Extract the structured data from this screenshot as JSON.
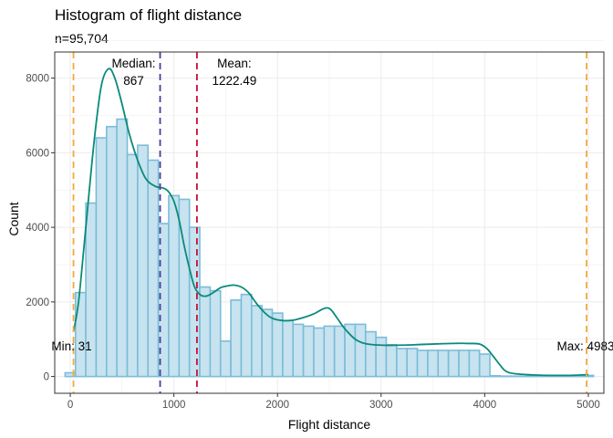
{
  "chart_data": {
    "type": "histogram",
    "title": "Histogram of flight distance",
    "subtitle": "n=95,704",
    "xlabel": "Flight distance",
    "ylabel": "Count",
    "xlim": [
      -150,
      5150
    ],
    "ylim": [
      -450,
      8700
    ],
    "x_ticks": [
      0,
      1000,
      2000,
      3000,
      4000,
      5000
    ],
    "y_ticks": [
      0,
      2000,
      4000,
      6000,
      8000
    ],
    "grid": true,
    "bin_width": 100,
    "bins_x": [
      0,
      100,
      200,
      300,
      400,
      500,
      600,
      700,
      800,
      900,
      1000,
      1100,
      1200,
      1300,
      1400,
      1500,
      1600,
      1700,
      1800,
      1900,
      2000,
      2100,
      2200,
      2300,
      2400,
      2500,
      2600,
      2700,
      2800,
      2900,
      3000,
      3100,
      3200,
      3300,
      3400,
      3500,
      3600,
      3700,
      3800,
      3900,
      4000,
      4100,
      4200,
      4300,
      4400,
      4500,
      4600,
      4700,
      4800,
      4900,
      5000
    ],
    "counts": [
      100,
      2250,
      4650,
      6400,
      6700,
      6900,
      5950,
      6200,
      5800,
      4100,
      4850,
      4750,
      4000,
      2400,
      2300,
      950,
      2050,
      2200,
      1900,
      1800,
      1700,
      1500,
      1400,
      1350,
      1300,
      1350,
      1350,
      1400,
      1400,
      1200,
      1050,
      850,
      750,
      750,
      700,
      700,
      700,
      700,
      700,
      700,
      600,
      20,
      10,
      10,
      10,
      10,
      10,
      10,
      10,
      10,
      30
    ],
    "density": [
      [
        31,
        1200
      ],
      [
        80,
        2000
      ],
      [
        150,
        4000
      ],
      [
        230,
        6300
      ],
      [
        300,
        7800
      ],
      [
        370,
        8250
      ],
      [
        430,
        8000
      ],
      [
        500,
        7300
      ],
      [
        570,
        6500
      ],
      [
        650,
        5800
      ],
      [
        730,
        5300
      ],
      [
        820,
        5100
      ],
      [
        900,
        5050
      ],
      [
        950,
        4950
      ],
      [
        1000,
        4700
      ],
      [
        1050,
        4200
      ],
      [
        1100,
        3500
      ],
      [
        1150,
        2900
      ],
      [
        1200,
        2400
      ],
      [
        1260,
        2180
      ],
      [
        1320,
        2160
      ],
      [
        1380,
        2250
      ],
      [
        1450,
        2380
      ],
      [
        1520,
        2430
      ],
      [
        1580,
        2450
      ],
      [
        1650,
        2400
      ],
      [
        1720,
        2250
      ],
      [
        1800,
        1950
      ],
      [
        1880,
        1700
      ],
      [
        1950,
        1560
      ],
      [
        2050,
        1500
      ],
      [
        2150,
        1510
      ],
      [
        2250,
        1580
      ],
      [
        2350,
        1680
      ],
      [
        2430,
        1800
      ],
      [
        2480,
        1840
      ],
      [
        2520,
        1780
      ],
      [
        2580,
        1550
      ],
      [
        2650,
        1280
      ],
      [
        2750,
        1000
      ],
      [
        2850,
        880
      ],
      [
        3000,
        840
      ],
      [
        3200,
        840
      ],
      [
        3400,
        860
      ],
      [
        3600,
        880
      ],
      [
        3750,
        890
      ],
      [
        3850,
        885
      ],
      [
        3950,
        870
      ],
      [
        4020,
        750
      ],
      [
        4080,
        550
      ],
      [
        4150,
        300
      ],
      [
        4200,
        150
      ],
      [
        4280,
        80
      ],
      [
        4500,
        40
      ],
      [
        4800,
        30
      ],
      [
        5000,
        50
      ]
    ],
    "reference_lines": [
      {
        "name": "min",
        "x": 31,
        "color": "#f4a83a",
        "label": "Min: 31"
      },
      {
        "name": "median",
        "x": 867,
        "color": "#4b3c9b",
        "label_line1": "Median:",
        "label_line2": "867"
      },
      {
        "name": "mean",
        "x": 1222.49,
        "color": "#c80c3a",
        "label_line1": "Mean:",
        "label_line2": "1222.49"
      },
      {
        "name": "max",
        "x": 4983,
        "color": "#f4a83a",
        "label": "Max: 4983"
      }
    ],
    "colors": {
      "bar_fill": "#c6e3ef",
      "bar_stroke": "#7cbcd9",
      "density": "#0a8a7a",
      "grid": "#ebebeb",
      "panel_border": "#333333"
    }
  }
}
